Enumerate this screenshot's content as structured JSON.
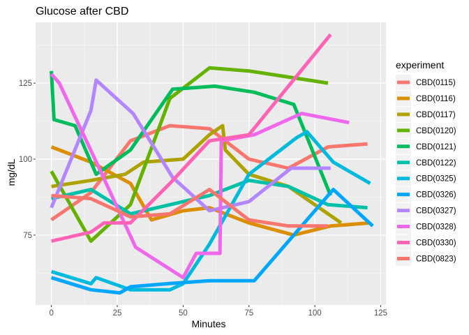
{
  "chart_data": {
    "type": "line",
    "title": "Glucose after CBD",
    "xlabel": "Minutes",
    "ylabel": "mg/dL",
    "xlim": [
      -6,
      127
    ],
    "ylim": [
      52,
      145
    ],
    "xticks": [
      0,
      25,
      50,
      75,
      100,
      125
    ],
    "yticks": [
      75,
      100,
      125
    ],
    "xtick_labels": [
      "0",
      "25",
      "50",
      "75",
      "100",
      "125"
    ],
    "ytick_labels": [
      "75",
      "100",
      "125"
    ],
    "grid": true,
    "legend": {
      "title": "experiment",
      "position": "right"
    },
    "series": [
      {
        "name": "CBD(0115)",
        "color": "#F8766D",
        "x": [
          0,
          15,
          30,
          45,
          60,
          75,
          90,
          105,
          120
        ],
        "y": [
          80,
          89,
          106,
          111,
          110,
          100,
          97,
          104,
          105
        ]
      },
      {
        "name": "CBD(0116)",
        "color": "#DB8E00",
        "x": [
          0,
          15,
          30,
          38,
          50,
          60,
          75,
          92,
          106,
          121
        ],
        "y": [
          104,
          99,
          92,
          80,
          83,
          84,
          79,
          75,
          78,
          79
        ]
      },
      {
        "name": "CBD(0117)",
        "color": "#AEA200",
        "x": [
          0,
          15,
          28,
          35,
          50,
          60,
          65,
          66,
          75,
          90,
          110
        ],
        "y": [
          91,
          93,
          95,
          99,
          100,
          108,
          111,
          103,
          95,
          91,
          79
        ]
      },
      {
        "name": "CBD(0120)",
        "color": "#64B200",
        "x": [
          0,
          15,
          30,
          45,
          60,
          75,
          90,
          105
        ],
        "y": [
          96,
          73,
          85,
          120,
          130,
          129,
          127,
          125
        ]
      },
      {
        "name": "CBD(0121)",
        "color": "#00BD5C",
        "x": [
          0,
          1,
          9,
          17,
          30,
          46,
          62,
          77,
          92,
          106
        ],
        "y": [
          129,
          113,
          111,
          95,
          103,
          123,
          124,
          122,
          118,
          88
        ]
      },
      {
        "name": "CBD(0122)",
        "color": "#00C1A7",
        "x": [
          0,
          15,
          30,
          45,
          60,
          75,
          90,
          105,
          120
        ],
        "y": [
          87,
          90,
          82,
          85,
          88,
          93,
          91,
          85,
          84
        ]
      },
      {
        "name": "CBD(0325)",
        "color": "#00BADE",
        "x": [
          0,
          15,
          17,
          30,
          45,
          50,
          60,
          75,
          93,
          97,
          107,
          121
        ],
        "y": [
          63,
          59,
          61,
          57,
          57,
          59,
          72,
          95,
          107,
          109,
          99,
          92
        ]
      },
      {
        "name": "CBD(0326)",
        "color": "#00A6FF",
        "x": [
          0,
          15,
          26,
          30,
          44,
          60,
          77,
          93,
          107,
          122
        ],
        "y": [
          61,
          57,
          56,
          58,
          59,
          60,
          60,
          76,
          90,
          78
        ]
      },
      {
        "name": "CBD(0327)",
        "color": "#B385FF",
        "x": [
          0,
          15,
          17,
          31,
          46,
          60,
          75,
          91,
          106
        ],
        "y": [
          84,
          116,
          126,
          115,
          94,
          83,
          86,
          97,
          97
        ]
      },
      {
        "name": "CBD(0328)",
        "color": "#EF67EB",
        "x": [
          0,
          3,
          16,
          32,
          50,
          55,
          64,
          64.5,
          77,
          95,
          113
        ],
        "y": [
          128,
          125,
          101,
          71,
          61,
          69,
          69,
          106,
          108,
          115,
          112
        ]
      },
      {
        "name": "CBD(0330)",
        "color": "#FF63B6",
        "x": [
          0,
          15,
          20,
          30,
          45,
          60,
          75,
          90,
          106
        ],
        "y": [
          73,
          76,
          79,
          79,
          92,
          106,
          108,
          124,
          141
        ]
      },
      {
        "name": "CBD(0823)",
        "color": "#F8766D",
        "x": [
          0,
          15,
          30,
          45,
          60,
          75,
          90,
          105
        ],
        "y": [
          88,
          87,
          81,
          82,
          90,
          80,
          78,
          78
        ]
      }
    ]
  }
}
